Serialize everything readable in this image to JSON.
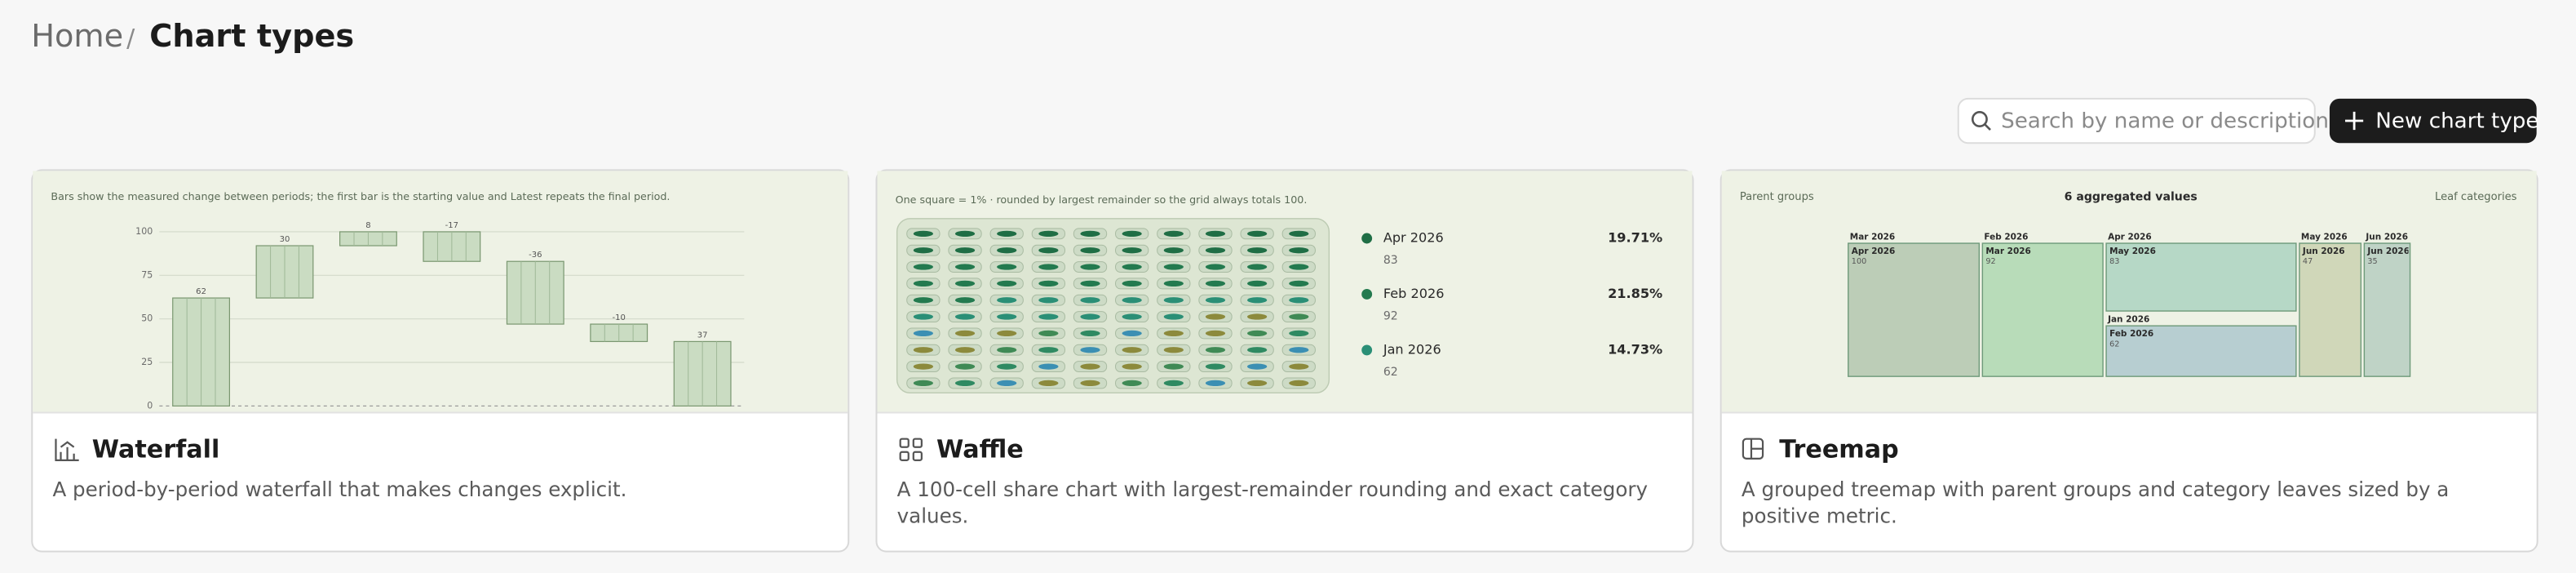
{
  "breadcrumb": {
    "home": "Home",
    "separator": "/",
    "current": "Chart types"
  },
  "search": {
    "placeholder": "Search by name or description"
  },
  "new_button": {
    "label": "New chart type"
  },
  "cards": [
    {
      "title": "Waterfall",
      "description": "A period-by-period waterfall that makes changes explicit.",
      "chart_data": {
        "type": "waterfall",
        "subtitle": "Bars show the measured change between periods; the first bar is the starting value and Latest repeats the final period.",
        "values": [
          62,
          30,
          8,
          -17,
          -36,
          -10,
          37
        ],
        "ylim": [
          0,
          100
        ],
        "yticks": [
          0,
          25,
          50,
          75,
          100
        ],
        "grid": true,
        "color": "#cadcc2"
      }
    },
    {
      "title": "Waffle",
      "description": "A 100-cell share chart with largest-remainder rounding and exact category values.",
      "chart_data": {
        "type": "waffle",
        "subtitle": "One square = 1% · rounded by largest remainder so the grid always totals 100.",
        "categories": [
          "Apr 2026",
          "Feb 2026",
          "Jan 2026"
        ],
        "values": [
          83,
          92,
          62
        ],
        "shares": [
          {
            "value": 19.71,
            "label": "19.71%"
          },
          {
            "value": 21.85,
            "label": "21.85%"
          },
          {
            "value": 14.73,
            "label": "14.73%"
          }
        ],
        "colors": [
          "#1f6e45",
          "#237a4f",
          "#2a8f76"
        ]
      }
    },
    {
      "title": "Treemap",
      "description": "A grouped treemap with parent groups and category leaves sized by a positive metric.",
      "chart_data": {
        "type": "treemap",
        "subtitle_left": "Parent groups",
        "title": "6 aggregated values",
        "subtitle_right": "Leaf categories",
        "groups": [
          {
            "name": "Mar 2026",
            "leaves": [
              {
                "name": "Apr 2026",
                "value": 100,
                "color": "#bccdb7"
              }
            ]
          },
          {
            "name": "Feb 2026",
            "leaves": [
              {
                "name": "Mar 2026",
                "value": 92,
                "color": "#b8dcb9"
              }
            ]
          },
          {
            "name": "Apr 2026",
            "leaves": [
              {
                "name": "May 2026",
                "value": 83,
                "color": "#b6d8c6"
              }
            ]
          },
          {
            "name": "Jan 2026",
            "leaves": [
              {
                "name": "Feb 2026",
                "value": 62,
                "color": "#b7ced1"
              }
            ]
          },
          {
            "name": "May 2026",
            "leaves": [
              {
                "name": "Jun 2026",
                "value": 47,
                "color": "#d0d7b9"
              }
            ]
          },
          {
            "name": "Jun 2026",
            "leaves": [
              {
                "name": "Jun 2026",
                "value": 35,
                "color": "#bfd3c6"
              }
            ]
          }
        ]
      }
    }
  ]
}
